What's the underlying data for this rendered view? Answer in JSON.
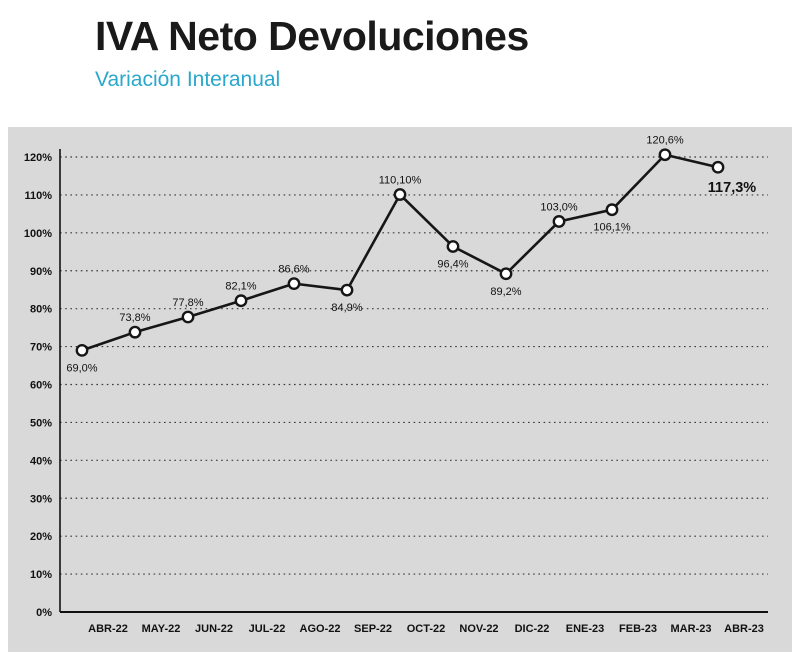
{
  "header": {
    "title": "IVA Neto Devoluciones",
    "subtitle": "Variación Interanual"
  },
  "colors": {
    "subtitle_accent": "#29a8cb",
    "panel_background": "#d9d9d9",
    "line": "#161616",
    "text": "#111111"
  },
  "chart_data": {
    "type": "line",
    "title": "IVA Neto Devoluciones",
    "subtitle": "Variación Interanual",
    "categories": [
      "ABR-22",
      "MAY-22",
      "JUN-22",
      "JUL-22",
      "AGO-22",
      "SEP-22",
      "OCT-22",
      "NOV-22",
      "DIC-22",
      "ENE-23",
      "FEB-23",
      "MAR-23",
      "ABR-23"
    ],
    "values": [
      69.0,
      73.8,
      77.8,
      82.1,
      86.6,
      84.9,
      110.1,
      96.4,
      89.2,
      103.0,
      106.1,
      120.6,
      117.3
    ],
    "point_labels": [
      "69,0%",
      "73,8%",
      "77,8%",
      "82,1%",
      "86,6%",
      "84,9%",
      "110,10%",
      "96,4%",
      "89,2%",
      "103,0%",
      "106,1%",
      "120,6%",
      "117,3%"
    ],
    "label_positions": [
      "below",
      "above",
      "above",
      "above",
      "above",
      "below",
      "above",
      "below",
      "below",
      "above",
      "below",
      "above",
      "below"
    ],
    "y_tick_labels": [
      "0%",
      "10%",
      "20%",
      "30%",
      "40%",
      "50%",
      "60%",
      "70%",
      "80%",
      "90%",
      "100%",
      "110%",
      "120%"
    ],
    "ylim": [
      0,
      120
    ],
    "y_tick_step": 10,
    "xlabel": "",
    "ylabel": "",
    "grid": "dotted-horizontal",
    "legend": "none",
    "emphasize_last_label": true
  }
}
